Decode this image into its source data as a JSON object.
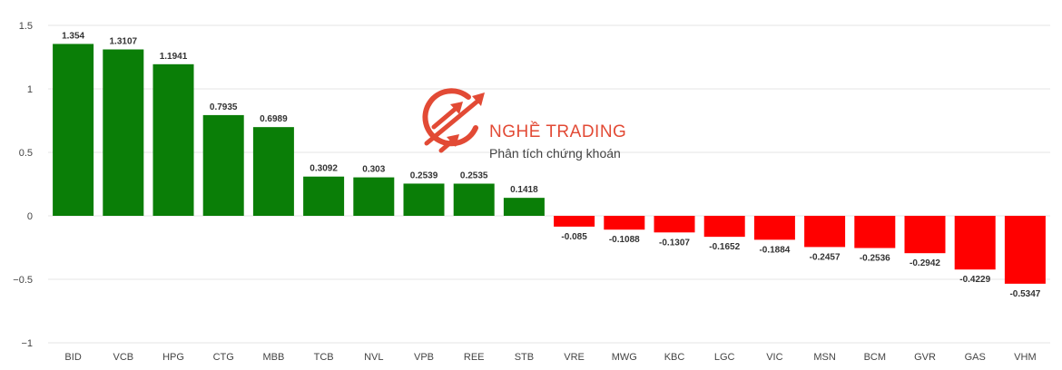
{
  "chart_data": {
    "type": "bar",
    "title": "",
    "xlabel": "",
    "ylabel": "",
    "ylim": [
      -1,
      1.5
    ],
    "yticks": [
      1.5,
      1,
      0.5,
      0,
      -0.5,
      -1
    ],
    "ytick_labels": [
      "1.5",
      "1",
      "0.5",
      "0",
      "−0.5",
      "−1"
    ],
    "grid": true,
    "categories": [
      "BID",
      "VCB",
      "HPG",
      "CTG",
      "MBB",
      "TCB",
      "NVL",
      "VPB",
      "REE",
      "STB",
      "VRE",
      "MWG",
      "KBC",
      "LGC",
      "VIC",
      "MSN",
      "BCM",
      "GVR",
      "GAS",
      "VHM"
    ],
    "values": [
      1.354,
      1.3107,
      1.1941,
      0.7935,
      0.6989,
      0.3092,
      0.303,
      0.2539,
      0.2535,
      0.1418,
      -0.085,
      -0.1088,
      -0.1307,
      -0.1652,
      -0.1884,
      -0.2457,
      -0.2536,
      -0.2942,
      -0.4229,
      -0.5347
    ],
    "data_labels": [
      "1.354",
      "1.3107",
      "1.1941",
      "0.7935",
      "0.6989",
      "0.3092",
      "0.303",
      "0.2539",
      "0.2535",
      "0.1418",
      "-0.085",
      "-0.1088",
      "-0.1307",
      "-0.1652",
      "-0.1884",
      "-0.2457",
      "-0.2536",
      "-0.2942",
      "-0.4229",
      "-0.5347"
    ],
    "colors": {
      "positive": "#0a7e07",
      "negative": "#ff0000",
      "grid": "#e6e6e6"
    }
  },
  "watermark": {
    "brand": "NGHỀ TRADING",
    "tagline": "Phân tích chứng khoán",
    "color": "#e03b24"
  }
}
